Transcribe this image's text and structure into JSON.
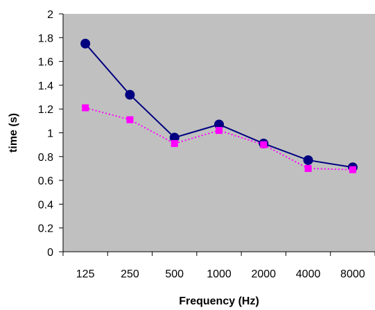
{
  "chart_data": {
    "type": "line",
    "title": "",
    "xlabel": "Frequency (Hz)",
    "ylabel": "time (s)",
    "categories": [
      "125",
      "250",
      "500",
      "1000",
      "2000",
      "4000",
      "8000"
    ],
    "ylim": [
      0,
      2
    ],
    "yticks": [
      "0",
      "0.2",
      "0.4",
      "0.6",
      "0.8",
      "1",
      "1.2",
      "1.4",
      "1.6",
      "1.8",
      "2"
    ],
    "grid": false,
    "legend": "none",
    "plot_background": "#c0c0c0",
    "series": [
      {
        "values": [
          1.75,
          1.32,
          0.96,
          1.07,
          0.91,
          0.77,
          0.71
        ],
        "color": "#000080",
        "marker": "circle",
        "line_style": "solid"
      },
      {
        "values": [
          1.21,
          1.11,
          0.91,
          1.02,
          0.9,
          0.7,
          0.69
        ],
        "color": "#ff00ff",
        "marker": "square",
        "line_style": "dotted"
      }
    ]
  }
}
